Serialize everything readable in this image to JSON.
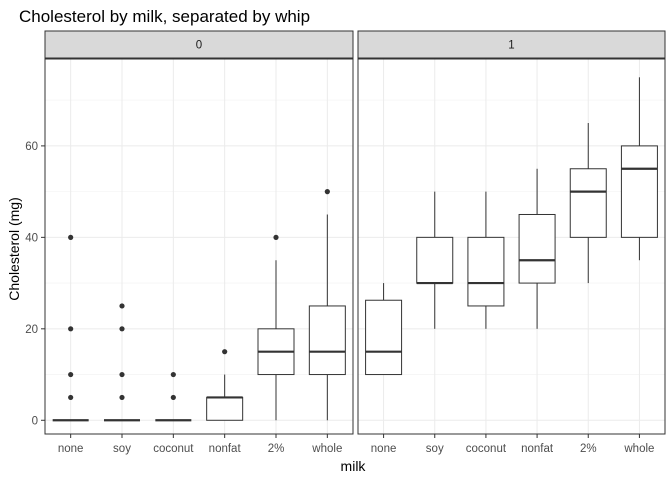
{
  "chart_data": {
    "type": "boxplot",
    "title": "Cholesterol by milk, separated by whip",
    "xlabel": "milk",
    "ylabel": "Cholesterol (mg)",
    "ylim": [
      -3,
      79
    ],
    "y_ticks": [
      0,
      20,
      40,
      60
    ],
    "grid": true,
    "categories": [
      "none",
      "soy",
      "coconut",
      "nonfat",
      "2%",
      "whole"
    ],
    "facets": [
      {
        "label": "0",
        "boxes": [
          {
            "category": "none",
            "lower_whisker": 0,
            "q1": 0,
            "median": 0,
            "q3": 0,
            "upper_whisker": 0,
            "outliers": [
              5,
              10,
              20,
              40
            ]
          },
          {
            "category": "soy",
            "lower_whisker": 0,
            "q1": 0,
            "median": 0,
            "q3": 0,
            "upper_whisker": 0,
            "outliers": [
              5,
              10,
              20,
              25
            ]
          },
          {
            "category": "coconut",
            "lower_whisker": 0,
            "q1": 0,
            "median": 0,
            "q3": 0,
            "upper_whisker": 0,
            "outliers": [
              5,
              10
            ]
          },
          {
            "category": "nonfat",
            "lower_whisker": 0,
            "q1": 0,
            "median": 5,
            "q3": 5,
            "upper_whisker": 10,
            "outliers": [
              15
            ]
          },
          {
            "category": "2%",
            "lower_whisker": 0,
            "q1": 10,
            "median": 15,
            "q3": 20,
            "upper_whisker": 35,
            "outliers": [
              40
            ]
          },
          {
            "category": "whole",
            "lower_whisker": 0,
            "q1": 10,
            "median": 15,
            "q3": 25,
            "upper_whisker": 45,
            "outliers": [
              50
            ]
          }
        ]
      },
      {
        "label": "1",
        "boxes": [
          {
            "category": "none",
            "lower_whisker": 10,
            "q1": 10,
            "median": 15,
            "q3": 26.25,
            "upper_whisker": 30,
            "outliers": []
          },
          {
            "category": "soy",
            "lower_whisker": 20,
            "q1": 30,
            "median": 30,
            "q3": 40,
            "upper_whisker": 50,
            "outliers": []
          },
          {
            "category": "coconut",
            "lower_whisker": 20,
            "q1": 25,
            "median": 30,
            "q3": 40,
            "upper_whisker": 50,
            "outliers": []
          },
          {
            "category": "nonfat",
            "lower_whisker": 20,
            "q1": 30,
            "median": 35,
            "q3": 45,
            "upper_whisker": 55,
            "outliers": []
          },
          {
            "category": "2%",
            "lower_whisker": 30,
            "q1": 40,
            "median": 50,
            "q3": 55,
            "upper_whisker": 65,
            "outliers": []
          },
          {
            "category": "whole",
            "lower_whisker": 35,
            "q1": 40,
            "median": 55,
            "q3": 60,
            "upper_whisker": 75,
            "outliers": []
          }
        ]
      }
    ]
  },
  "colors": {
    "background": "#ffffff",
    "panel_border": "#333333",
    "grid_major": "#ebebeb",
    "grid_minor": "#f5f5f5",
    "strip_fill": "#d9d9d9",
    "box_stroke": "#333333",
    "outlier": "#333333",
    "tick_text": "#4d4d4d"
  }
}
